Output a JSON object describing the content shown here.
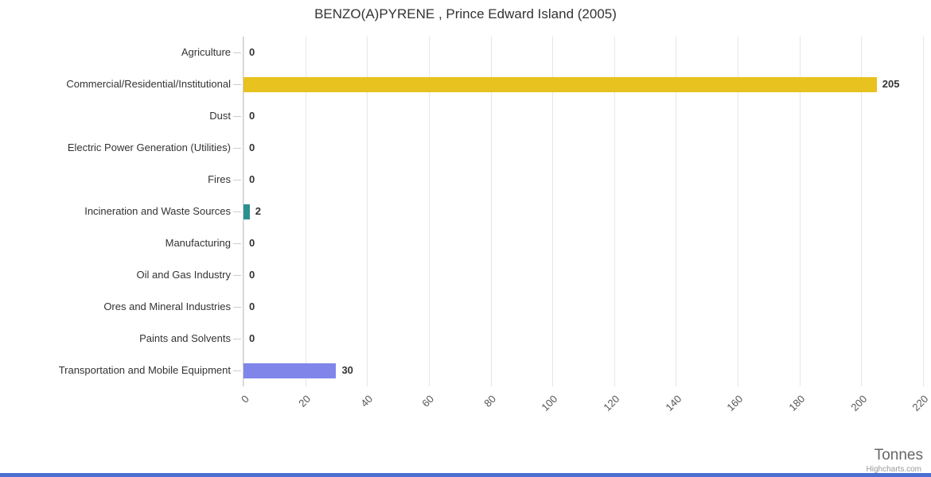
{
  "title": "BENZO(A)PYRENE , Prince Edward Island (2005)",
  "chart_data": {
    "type": "bar",
    "orientation": "horizontal",
    "title": "BENZO(A)PYRENE , Prince Edward Island (2005)",
    "categories": [
      "Agriculture",
      "Commercial/Residential/Institutional",
      "Dust",
      "Electric Power Generation (Utilities)",
      "Fires",
      "Incineration and Waste Sources",
      "Manufacturing",
      "Oil and Gas Industry",
      "Ores and Mineral Industries",
      "Paints and Solvents",
      "Transportation and Mobile Equipment"
    ],
    "values": [
      0,
      205,
      0,
      0,
      0,
      2,
      0,
      0,
      0,
      0,
      30
    ],
    "colors": [
      null,
      "#e8c21e",
      null,
      null,
      null,
      "#2b908f",
      null,
      null,
      null,
      null,
      "#8085e9"
    ],
    "xlabel": "Tonnes",
    "ylabel": "",
    "xlim": [
      0,
      220
    ],
    "ticks": [
      0,
      20,
      40,
      60,
      80,
      100,
      120,
      140,
      160,
      180,
      200,
      220
    ],
    "grid": true,
    "data_labels": true,
    "legend": "none"
  },
  "credits": "Highcharts.com",
  "colors": {
    "gridline": "#e6e6e6",
    "axis_line": "#cccccc",
    "title_text": "#333333",
    "label_text": "#333333",
    "value_label": "#333333",
    "axis_label": "#555555",
    "axis_title": "#666666",
    "credits": "#999999",
    "footer_strip": "#4a70d0",
    "background": "#ffffff"
  }
}
